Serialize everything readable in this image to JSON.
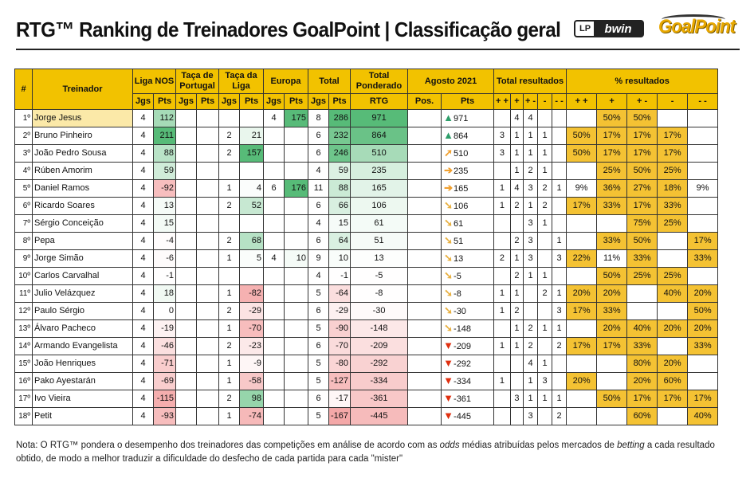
{
  "title": "RTG™ Ranking de Treinadores GoalPoint | Classificação geral",
  "logos": {
    "lp": "LP",
    "bwin": "bwin",
    "goalpoint": "GoalPoint"
  },
  "colors": {
    "header": "#f2c200",
    "up": "#2e9e6a",
    "right": "#f0a030",
    "down_right": "#e8b040",
    "down": "#e03010",
    "pos_strong": "#57bb78",
    "neg_strong": "#ec6a6a"
  },
  "headers": {
    "rank": "#",
    "coach": "Treinador",
    "liga": "Liga NOS",
    "taca_portugal": "Taça de Portugal",
    "taca_liga": "Taça da Liga",
    "europa": "Europa",
    "total": "Total",
    "total_ponderado": "Total Ponderado",
    "agosto": "Agosto 2021",
    "total_resultados": "Total resultados",
    "pct_resultados": "% resultados",
    "jgs": "Jgs",
    "pts": "Pts",
    "rtg": "RTG",
    "pos": "Pos.",
    "res_cols": [
      "+ +",
      "+",
      "+ -",
      "-",
      "- -"
    ]
  },
  "rows": [
    {
      "rank": "1º",
      "name": "Jorge Jesus",
      "liga_j": "4",
      "liga_p": "112",
      "tp_j": "",
      "tp_p": "",
      "tl_j": "",
      "tl_p": "",
      "eu_j": "4",
      "eu_p": "175",
      "tot_j": "8",
      "tot_p": "286",
      "rtg": "971",
      "agosto_pos": "",
      "trend": "up",
      "agosto_pts": "971",
      "res": [
        "",
        "4",
        "4",
        "",
        ""
      ],
      "pct": [
        "",
        "50%",
        "50%",
        "",
        ""
      ]
    },
    {
      "rank": "2º",
      "name": "Bruno Pinheiro",
      "liga_j": "4",
      "liga_p": "211",
      "tp_j": "",
      "tp_p": "",
      "tl_j": "2",
      "tl_p": "21",
      "eu_j": "",
      "eu_p": "",
      "tot_j": "6",
      "tot_p": "232",
      "rtg": "864",
      "agosto_pos": "",
      "trend": "up",
      "agosto_pts": "864",
      "res": [
        "3",
        "1",
        "1",
        "1",
        ""
      ],
      "pct": [
        "50%",
        "17%",
        "17%",
        "17%",
        ""
      ]
    },
    {
      "rank": "3º",
      "name": "João Pedro Sousa",
      "liga_j": "4",
      "liga_p": "88",
      "tp_j": "",
      "tp_p": "",
      "tl_j": "2",
      "tl_p": "157",
      "eu_j": "",
      "eu_p": "",
      "tot_j": "6",
      "tot_p": "246",
      "rtg": "510",
      "agosto_pos": "",
      "trend": "up-right",
      "agosto_pts": "510",
      "res": [
        "3",
        "1",
        "1",
        "1",
        ""
      ],
      "pct": [
        "50%",
        "17%",
        "17%",
        "17%",
        ""
      ]
    },
    {
      "rank": "4º",
      "name": "Rúben Amorim",
      "liga_j": "4",
      "liga_p": "59",
      "tp_j": "",
      "tp_p": "",
      "tl_j": "",
      "tl_p": "",
      "eu_j": "",
      "eu_p": "",
      "tot_j": "4",
      "tot_p": "59",
      "rtg": "235",
      "agosto_pos": "",
      "trend": "right",
      "agosto_pts": "235",
      "res": [
        "",
        "1",
        "2",
        "1",
        ""
      ],
      "pct": [
        "",
        "25%",
        "50%",
        "25%",
        ""
      ]
    },
    {
      "rank": "5º",
      "name": "Daniel Ramos",
      "liga_j": "4",
      "liga_p": "-92",
      "tp_j": "",
      "tp_p": "",
      "tl_j": "1",
      "tl_p": "4",
      "eu_j": "6",
      "eu_p": "176",
      "tot_j": "11",
      "tot_p": "88",
      "rtg": "165",
      "agosto_pos": "",
      "trend": "right",
      "agosto_pts": "165",
      "res": [
        "1",
        "4",
        "3",
        "2",
        "1"
      ],
      "pct": [
        "9%",
        "36%",
        "27%",
        "18%",
        "9%"
      ]
    },
    {
      "rank": "6º",
      "name": "Ricardo Soares",
      "liga_j": "4",
      "liga_p": "13",
      "tp_j": "",
      "tp_p": "",
      "tl_j": "2",
      "tl_p": "52",
      "eu_j": "",
      "eu_p": "",
      "tot_j": "6",
      "tot_p": "66",
      "rtg": "106",
      "agosto_pos": "",
      "trend": "down-right",
      "agosto_pts": "106",
      "res": [
        "1",
        "2",
        "1",
        "2",
        ""
      ],
      "pct": [
        "17%",
        "33%",
        "17%",
        "33%",
        ""
      ]
    },
    {
      "rank": "7º",
      "name": "Sérgio Conceição",
      "liga_j": "4",
      "liga_p": "15",
      "tp_j": "",
      "tp_p": "",
      "tl_j": "",
      "tl_p": "",
      "eu_j": "",
      "eu_p": "",
      "tot_j": "4",
      "tot_p": "15",
      "rtg": "61",
      "agosto_pos": "",
      "trend": "down-right",
      "agosto_pts": "61",
      "res": [
        "",
        "",
        "3",
        "1",
        ""
      ],
      "pct": [
        "",
        "",
        "75%",
        "25%",
        ""
      ]
    },
    {
      "rank": "8º",
      "name": "Pepa",
      "liga_j": "4",
      "liga_p": "-4",
      "tp_j": "",
      "tp_p": "",
      "tl_j": "2",
      "tl_p": "68",
      "eu_j": "",
      "eu_p": "",
      "tot_j": "6",
      "tot_p": "64",
      "rtg": "51",
      "agosto_pos": "",
      "trend": "down-right",
      "agosto_pts": "51",
      "res": [
        "",
        "2",
        "3",
        "",
        "1"
      ],
      "pct": [
        "",
        "33%",
        "50%",
        "",
        "17%"
      ]
    },
    {
      "rank": "9º",
      "name": "Jorge Simão",
      "liga_j": "4",
      "liga_p": "-6",
      "tp_j": "",
      "tp_p": "",
      "tl_j": "1",
      "tl_p": "5",
      "eu_j": "4",
      "eu_p": "10",
      "tot_j": "9",
      "tot_p": "10",
      "rtg": "13",
      "agosto_pos": "",
      "trend": "down-right",
      "agosto_pts": "13",
      "res": [
        "2",
        "1",
        "3",
        "",
        "3"
      ],
      "pct": [
        "22%",
        "11%",
        "33%",
        "",
        "33%"
      ]
    },
    {
      "rank": "10º",
      "name": "Carlos Carvalhal",
      "liga_j": "4",
      "liga_p": "-1",
      "tp_j": "",
      "tp_p": "",
      "tl_j": "",
      "tl_p": "",
      "eu_j": "",
      "eu_p": "",
      "tot_j": "4",
      "tot_p": "-1",
      "rtg": "-5",
      "agosto_pos": "",
      "trend": "down-right",
      "agosto_pts": "-5",
      "res": [
        "",
        "2",
        "1",
        "1",
        ""
      ],
      "pct": [
        "",
        "50%",
        "25%",
        "25%",
        ""
      ]
    },
    {
      "rank": "11º",
      "name": "Julio Velázquez",
      "liga_j": "4",
      "liga_p": "18",
      "tp_j": "",
      "tp_p": "",
      "tl_j": "1",
      "tl_p": "-82",
      "eu_j": "",
      "eu_p": "",
      "tot_j": "5",
      "tot_p": "-64",
      "rtg": "-8",
      "agosto_pos": "",
      "trend": "down-right",
      "agosto_pts": "-8",
      "res": [
        "1",
        "1",
        "",
        "2",
        "1"
      ],
      "pct": [
        "20%",
        "20%",
        "",
        "40%",
        "20%"
      ]
    },
    {
      "rank": "12º",
      "name": "Paulo Sérgio",
      "liga_j": "4",
      "liga_p": "0",
      "tp_j": "",
      "tp_p": "",
      "tl_j": "2",
      "tl_p": "-29",
      "eu_j": "",
      "eu_p": "",
      "tot_j": "6",
      "tot_p": "-29",
      "rtg": "-30",
      "agosto_pos": "",
      "trend": "down-right",
      "agosto_pts": "-30",
      "res": [
        "1",
        "2",
        "",
        "",
        "3"
      ],
      "pct": [
        "17%",
        "33%",
        "",
        "",
        "50%"
      ]
    },
    {
      "rank": "13º",
      "name": "Álvaro Pacheco",
      "liga_j": "4",
      "liga_p": "-19",
      "tp_j": "",
      "tp_p": "",
      "tl_j": "1",
      "tl_p": "-70",
      "eu_j": "",
      "eu_p": "",
      "tot_j": "5",
      "tot_p": "-90",
      "rtg": "-148",
      "agosto_pos": "",
      "trend": "down-right",
      "agosto_pts": "-148",
      "res": [
        "",
        "1",
        "2",
        "1",
        "1"
      ],
      "pct": [
        "",
        "20%",
        "40%",
        "20%",
        "20%"
      ]
    },
    {
      "rank": "14º",
      "name": "Armando Evangelista",
      "liga_j": "4",
      "liga_p": "-46",
      "tp_j": "",
      "tp_p": "",
      "tl_j": "2",
      "tl_p": "-23",
      "eu_j": "",
      "eu_p": "",
      "tot_j": "6",
      "tot_p": "-70",
      "rtg": "-209",
      "agosto_pos": "",
      "trend": "down",
      "agosto_pts": "-209",
      "res": [
        "1",
        "1",
        "2",
        "",
        "2"
      ],
      "pct": [
        "17%",
        "17%",
        "33%",
        "",
        "33%"
      ]
    },
    {
      "rank": "15º",
      "name": "João Henriques",
      "liga_j": "4",
      "liga_p": "-71",
      "tp_j": "",
      "tp_p": "",
      "tl_j": "1",
      "tl_p": "-9",
      "eu_j": "",
      "eu_p": "",
      "tot_j": "5",
      "tot_p": "-80",
      "rtg": "-292",
      "agosto_pos": "",
      "trend": "down",
      "agosto_pts": "-292",
      "res": [
        "",
        "",
        "4",
        "1",
        ""
      ],
      "pct": [
        "",
        "",
        "80%",
        "20%",
        ""
      ]
    },
    {
      "rank": "16º",
      "name": "Pako Ayestarán",
      "liga_j": "4",
      "liga_p": "-69",
      "tp_j": "",
      "tp_p": "",
      "tl_j": "1",
      "tl_p": "-58",
      "eu_j": "",
      "eu_p": "",
      "tot_j": "5",
      "tot_p": "-127",
      "rtg": "-334",
      "agosto_pos": "",
      "trend": "down",
      "agosto_pts": "-334",
      "res": [
        "1",
        "",
        "1",
        "3",
        ""
      ],
      "pct": [
        "20%",
        "",
        "20%",
        "60%",
        ""
      ]
    },
    {
      "rank": "17º",
      "name": "Ivo Vieira",
      "liga_j": "4",
      "liga_p": "-115",
      "tp_j": "",
      "tp_p": "",
      "tl_j": "2",
      "tl_p": "98",
      "eu_j": "",
      "eu_p": "",
      "tot_j": "6",
      "tot_p": "-17",
      "rtg": "-361",
      "agosto_pos": "",
      "trend": "down",
      "agosto_pts": "-361",
      "res": [
        "",
        "3",
        "1",
        "1",
        "1"
      ],
      "pct": [
        "",
        "50%",
        "17%",
        "17%",
        "17%"
      ]
    },
    {
      "rank": "18º",
      "name": "Petit",
      "liga_j": "4",
      "liga_p": "-93",
      "tp_j": "",
      "tp_p": "",
      "tl_j": "1",
      "tl_p": "-74",
      "eu_j": "",
      "eu_p": "",
      "tot_j": "5",
      "tot_p": "-167",
      "rtg": "-445",
      "agosto_pos": "",
      "trend": "down",
      "agosto_pts": "-445",
      "res": [
        "",
        "",
        "3",
        "",
        "2"
      ],
      "pct": [
        "",
        "",
        "60%",
        "",
        "40%"
      ]
    }
  ],
  "note": {
    "p1": "Nota: O RTG™ pondera o desempenho dos treinadores das competições em análise de acordo com as ",
    "odds": "odds",
    "p2": " médias atribuídas pelos mercados de ",
    "betting": "betting",
    "p3": " a cada resultado obtido, de modo a melhor traduzir a dificuldade do desfecho de cada partida para cada \"mister\""
  }
}
